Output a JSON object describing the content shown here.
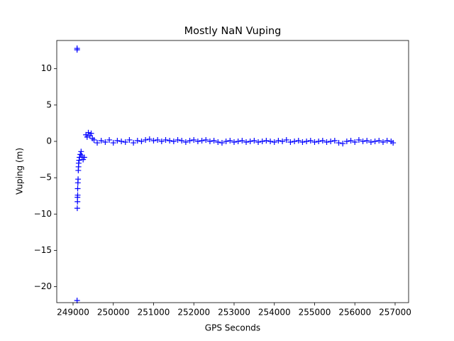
{
  "chart_data": {
    "type": "scatter",
    "title": "Mostly NaN Vuping",
    "x_label": "GPS Seconds",
    "y_label": "Vuping (m)",
    "marker": "+",
    "color": "#0000ff",
    "xlim": [
      248595,
      257335
    ],
    "ylim": [
      -22.19,
      13.88
    ],
    "xticks": [
      249000,
      250000,
      251000,
      252000,
      253000,
      254000,
      255000,
      256000,
      257000
    ],
    "yticks": [
      {
        "value": -20,
        "label": "−20"
      },
      {
        "value": -15,
        "label": "−15"
      },
      {
        "value": -10,
        "label": "−10"
      },
      {
        "value": -5,
        "label": "−5"
      },
      0,
      5,
      10
    ],
    "x": [
      249100,
      249100,
      249100,
      249105,
      249110,
      249110,
      249115,
      249115,
      249120,
      249125,
      249130,
      249135,
      249140,
      249150,
      249160,
      249180,
      249200,
      249220,
      249250,
      249280,
      249320,
      249350,
      249380,
      249420,
      249450,
      249480,
      249520,
      249600,
      249700,
      249800,
      249900,
      250000,
      250100,
      250200,
      250300,
      250400,
      250500,
      250600,
      250700,
      250800,
      250900,
      251000,
      251100,
      251200,
      251300,
      251400,
      251500,
      251600,
      251700,
      251800,
      251900,
      252000,
      252100,
      252200,
      252300,
      252400,
      252500,
      252600,
      252700,
      252800,
      252900,
      253000,
      253100,
      253200,
      253300,
      253400,
      253500,
      253600,
      253700,
      253800,
      253900,
      254000,
      254100,
      254200,
      254300,
      254400,
      254500,
      254600,
      254700,
      254800,
      254900,
      255000,
      255100,
      255200,
      255300,
      255400,
      255500,
      255600,
      255700,
      255800,
      255900,
      256000,
      256100,
      256200,
      256300,
      256400,
      256500,
      256600,
      256700,
      256800,
      256900,
      256950
    ],
    "values": [
      12.8,
      12.6,
      -21.9,
      -9.2,
      -8.3,
      -7.7,
      -7.4,
      -6.5,
      -5.7,
      -5.2,
      -4.0,
      -3.5,
      -3.0,
      -2.6,
      -2.2,
      -1.8,
      -1.4,
      -2.0,
      -2.5,
      -2.2,
      0.9,
      0.6,
      1.2,
      0.8,
      1.1,
      0.4,
      0.2,
      -0.2,
      0.1,
      -0.1,
      0.2,
      -0.2,
      0.1,
      0,
      -0.1,
      0.2,
      -0.2,
      0.1,
      0,
      0.2,
      0.3,
      0.1,
      0.2,
      0,
      0.2,
      0.1,
      0,
      0.2,
      0.1,
      -0.1,
      0.1,
      0.2,
      0,
      0.1,
      0.2,
      0,
      0.1,
      -0.1,
      -0.2,
      0,
      0.1,
      -0.1,
      0,
      0.1,
      -0.1,
      0,
      0.1,
      -0.1,
      0,
      0.1,
      0,
      -0.1,
      0.1,
      0,
      0.2,
      -0.1,
      0,
      0.1,
      -0.1,
      0,
      0.1,
      -0.1,
      0,
      0.1,
      -0.1,
      0,
      0.1,
      -0.2,
      -0.3,
      0,
      0.1,
      -0.1,
      0.2,
      0,
      0.1,
      -0.1,
      0,
      0.1,
      -0.1,
      0.1,
      0,
      -0.2
    ]
  }
}
